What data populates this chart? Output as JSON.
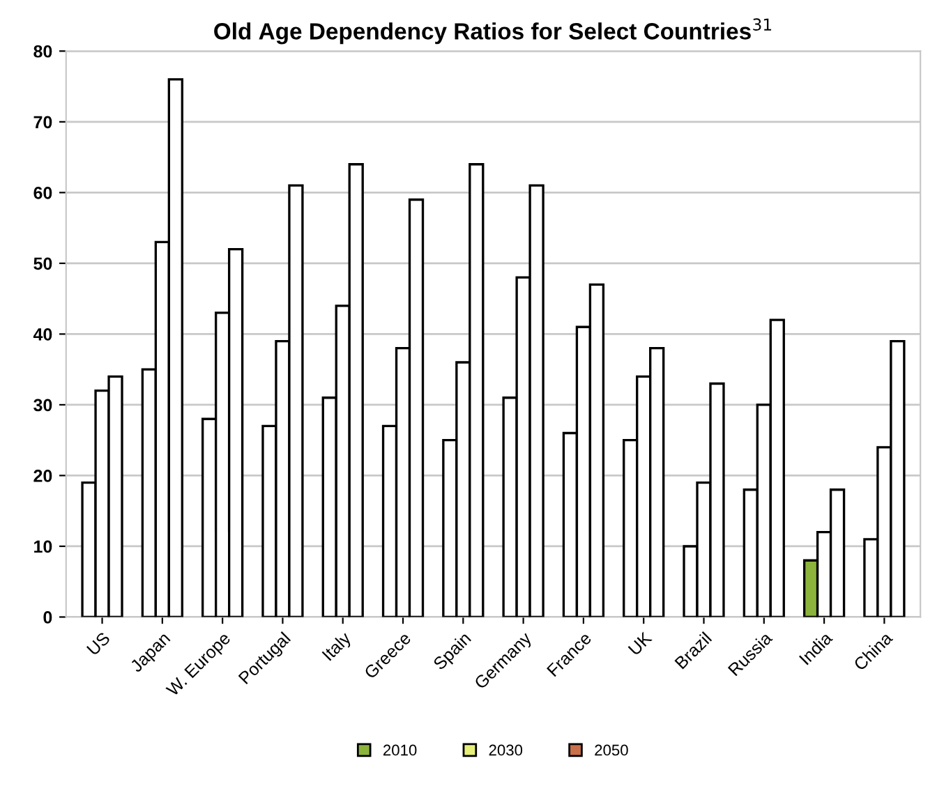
{
  "chart_data": {
    "type": "bar",
    "title": "Old Age Dependency Ratios for Select Countries$^{31}$",
    "categories": [
      "US",
      "Japan",
      "W. Europe",
      "Portugal",
      "Italy",
      "Greece",
      "Spain",
      "Germany",
      "France",
      "UK",
      "Brazil",
      "Russia",
      "India",
      "China"
    ],
    "series": [
      {
        "name": "2010",
        "color": "#8cb43c",
        "colors": [
          "#ffffff",
          "#ffffff",
          "#ffffff",
          "#ffffff",
          "#ffffff",
          "#ffffff",
          "#ffffff",
          "#ffffff",
          "#ffffff",
          "#ffffff",
          "#ffffff",
          "#ffffff",
          "#8cb43c",
          "#ffffff"
        ],
        "values": [
          19,
          35,
          28,
          27,
          31,
          27,
          25,
          31,
          26,
          25,
          10,
          18,
          8,
          11
        ]
      },
      {
        "name": "2030",
        "color": "#e6f078",
        "colors": [
          "#ffffff",
          "#ffffff",
          "#ffffff",
          "#ffffff",
          "#ffffff",
          "#ffffff",
          "#ffffff",
          "#ffffff",
          "#ffffff",
          "#ffffff",
          "#ffffff",
          "#ffffff",
          "#ffffff",
          "#ffffff"
        ],
        "values": [
          32,
          53,
          43,
          39,
          44,
          38,
          36,
          48,
          41,
          34,
          19,
          30,
          12,
          24
        ]
      },
      {
        "name": "2050",
        "color": "#c8704a",
        "colors": [
          "#ffffff",
          "#ffffff",
          "#ffffff",
          "#ffffff",
          "#ffffff",
          "#ffffff",
          "#ffffff",
          "#ffffff",
          "#ffffff",
          "#ffffff",
          "#ffffff",
          "#ffffff",
          "#ffffff",
          "#ffffff"
        ],
        "values": [
          34,
          76,
          52,
          61,
          64,
          59,
          64,
          61,
          47,
          38,
          33,
          42,
          18,
          39
        ]
      }
    ],
    "ylim": [
      0,
      80
    ],
    "yticks": [
      0,
      10,
      20,
      30,
      40,
      50,
      60,
      70,
      80
    ],
    "grid": "y",
    "legend": "bottom"
  }
}
